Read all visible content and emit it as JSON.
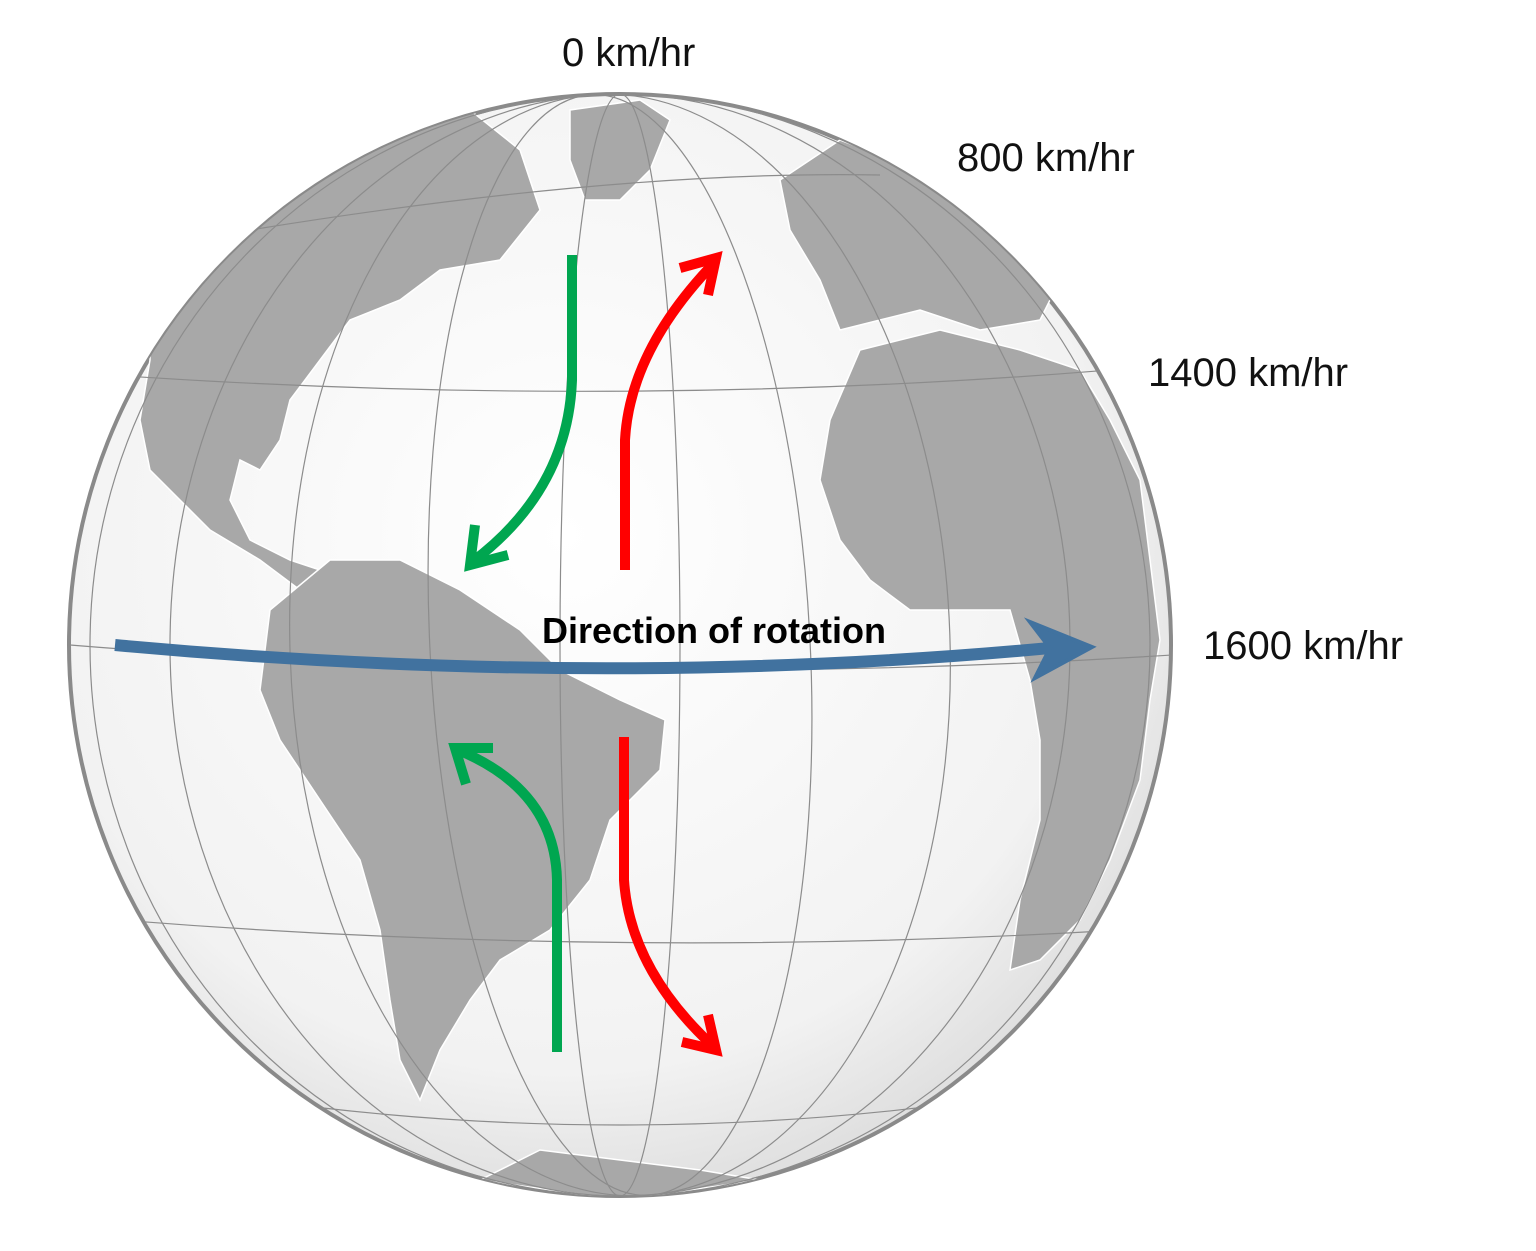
{
  "labels": {
    "speed_pole": "0 km/hr",
    "speed_60": "800 km/hr",
    "speed_30": "1400 km/hr",
    "speed_equator": "1600 km/hr",
    "direction": "Direction of rotation"
  },
  "colors": {
    "land": "#a8a8a8",
    "ocean": "#f4f4f4",
    "grid": "#8c8c8c",
    "green_arrow": "#00a650",
    "red_arrow": "#ff0000",
    "rotation_arrow": "#41729f"
  }
}
